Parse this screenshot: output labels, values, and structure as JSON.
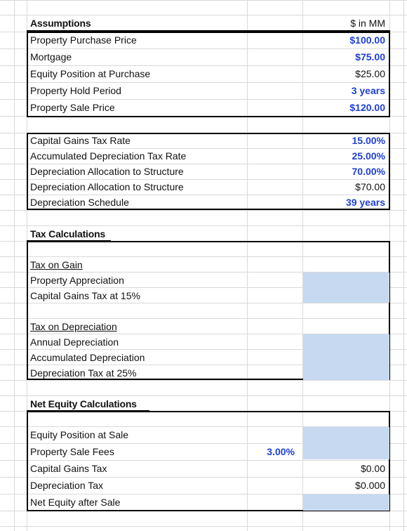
{
  "assumptions": {
    "title": "Assumptions",
    "unit_label": "$ in MM",
    "rows": [
      {
        "label": "Property Purchase Price",
        "value": "$100.00"
      },
      {
        "label": "Mortgage",
        "value": "$75.00"
      },
      {
        "label": "Equity Position at Purchase",
        "value": "$25.00"
      },
      {
        "label": "Property Hold Period",
        "value": "3 years"
      },
      {
        "label": "Property Sale Price",
        "value": "$120.00"
      }
    ],
    "rows2": [
      {
        "label": "Capital Gains Tax Rate",
        "value": "15.00%"
      },
      {
        "label": "Accumulated Depreciation Tax Rate",
        "value": "25.00%"
      },
      {
        "label": "Depreciation Allocation to Structure",
        "value": "70.00%"
      },
      {
        "label": "Depreciation Allocation to Structure",
        "value": "$70.00"
      },
      {
        "label": "Depreciation Schedule",
        "value": "39 years"
      }
    ]
  },
  "tax": {
    "title": "Tax Calculations",
    "gain_header": "Tax on Gain",
    "gain_rows": [
      "Property Appreciation",
      "Capital Gains Tax at 15%"
    ],
    "dep_header": "Tax on Depreciation",
    "dep_rows": [
      "Annual Depreciation",
      "Accumulated Depreciation",
      "Depreciation Tax at 25%"
    ]
  },
  "equity": {
    "title": "Net Equity Calculations",
    "rows": [
      {
        "label": "Equity Position at Sale",
        "value": ""
      },
      {
        "label": "Property Sale Fees",
        "value": ""
      },
      {
        "label": "Capital Gains Tax",
        "value": "$0.00"
      },
      {
        "label": "Depreciation Tax",
        "value": "$0.000"
      },
      {
        "label": "Net Equity after Sale",
        "value": ""
      }
    ],
    "fee_rate": "3.00%"
  },
  "colors": {
    "input_blue": "#1f3fd6",
    "cell_fill": "#c6d9f1",
    "grid": "#d9d9d9"
  }
}
